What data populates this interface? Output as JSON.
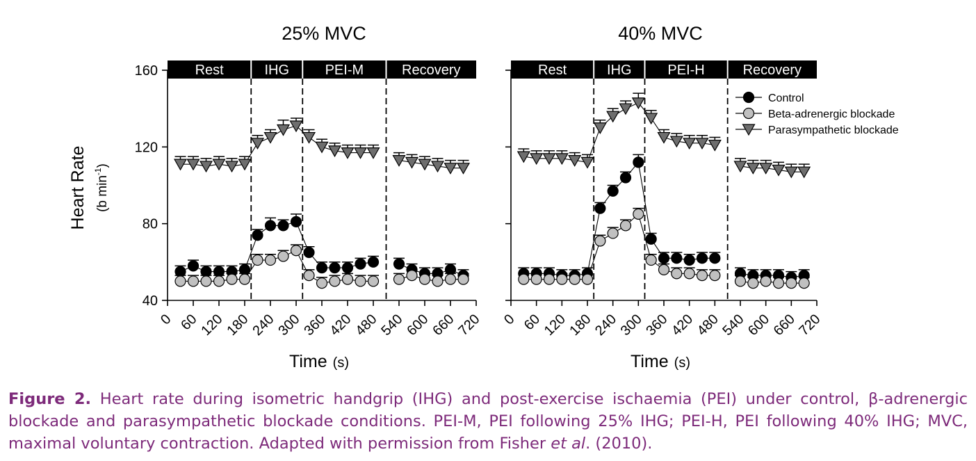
{
  "figure": {
    "ylabel_main": "Heart Rate",
    "ylabel_unit_prefix": "(b min",
    "ylabel_unit_sup": "-1",
    "ylabel_unit_suffix": ")",
    "xlabel_main": "Time",
    "xlabel_unit": "(s)",
    "legend": [
      "Control",
      "Beta-adrenergic blockade",
      "Parasympathetic blockade"
    ]
  },
  "caption": {
    "label": "Figure 2.",
    "text_1": " Heart rate during isometric handgrip (IHG) and post-exercise ischaemia (PEI) under control, β-adrenergic blockade and parasympathetic blockade conditions. PEI-M, PEI following 25% IHG; PEI-H, PEI following 40% IHG; MVC, maximal voluntary contraction. Adapted with permission from Fisher ",
    "italic": "et al",
    "text_2": ". (2010)."
  },
  "colors": {
    "control": "#000000",
    "beta": "#c0c0c0",
    "para": "#6e6e6e",
    "caption": "#7d2a7a"
  },
  "chart_data": [
    {
      "type": "line",
      "title": "25% MVC",
      "xlabel": "Time (s)",
      "ylabel": "Heart Rate (b min-1)",
      "xlim": [
        0,
        720
      ],
      "ylim": [
        40,
        160
      ],
      "xticks": [
        0,
        60,
        120,
        180,
        240,
        300,
        360,
        420,
        480,
        540,
        600,
        660,
        720
      ],
      "yticks": [
        40,
        80,
        120,
        160
      ],
      "phases": [
        {
          "label": "Rest",
          "start": 0,
          "end": 195
        },
        {
          "label": "IHG",
          "start": 195,
          "end": 315
        },
        {
          "label": "PEI-M",
          "start": 315,
          "end": 510
        },
        {
          "label": "Recovery",
          "start": 510,
          "end": 720
        }
      ],
      "phase_boundaries": [
        195,
        315,
        510
      ],
      "series": [
        {
          "name": "Control",
          "key": "control",
          "marker": "circle",
          "x": [
            30,
            60,
            90,
            120,
            150,
            180,
            210,
            240,
            270,
            300,
            330,
            360,
            390,
            420,
            450,
            480,
            540,
            570,
            600,
            630,
            660,
            690
          ],
          "y": [
            55,
            58,
            55,
            55,
            55,
            56,
            74,
            79,
            79,
            81,
            65,
            57,
            57,
            57,
            59,
            60,
            59,
            56,
            54,
            54,
            56,
            53
          ],
          "err": [
            3,
            3,
            3,
            3,
            3,
            3,
            3,
            4,
            3,
            4,
            3,
            3,
            3,
            3,
            3,
            3,
            3,
            3,
            3,
            3,
            3,
            3
          ]
        },
        {
          "name": "Beta-adrenergic blockade",
          "key": "beta",
          "marker": "circle",
          "x": [
            30,
            60,
            90,
            120,
            150,
            180,
            210,
            240,
            270,
            300,
            330,
            360,
            390,
            420,
            450,
            480,
            540,
            570,
            600,
            630,
            660,
            690
          ],
          "y": [
            50,
            50,
            50,
            50,
            51,
            51,
            61,
            61,
            63,
            66,
            53,
            49,
            50,
            51,
            50,
            50,
            51,
            53,
            51,
            50,
            51,
            51
          ],
          "err": [
            3,
            3,
            3,
            3,
            3,
            3,
            3,
            3,
            3,
            3,
            3,
            3,
            3,
            3,
            3,
            3,
            3,
            3,
            3,
            3,
            3,
            3
          ]
        },
        {
          "name": "Parasympathetic blockade",
          "key": "para",
          "marker": "triangle-down",
          "x": [
            30,
            60,
            90,
            120,
            150,
            180,
            210,
            240,
            270,
            300,
            330,
            360,
            390,
            420,
            450,
            480,
            540,
            570,
            600,
            630,
            660,
            690
          ],
          "y": [
            111,
            111,
            110,
            111,
            110,
            111,
            122,
            125,
            129,
            131,
            125,
            120,
            118,
            117,
            117,
            117,
            113,
            112,
            111,
            110,
            109,
            109
          ],
          "err": [
            4,
            4,
            4,
            4,
            4,
            4,
            4,
            4,
            5,
            4,
            4,
            4,
            4,
            4,
            4,
            4,
            4,
            4,
            4,
            4,
            4,
            4
          ]
        }
      ]
    },
    {
      "type": "line",
      "title": "40% MVC",
      "xlabel": "Time (s)",
      "ylabel": "Heart Rate (b min-1)",
      "xlim": [
        0,
        720
      ],
      "ylim": [
        40,
        160
      ],
      "xticks": [
        0,
        60,
        120,
        180,
        240,
        300,
        360,
        420,
        480,
        540,
        600,
        660,
        720
      ],
      "yticks": [
        40,
        80,
        120,
        160
      ],
      "phases": [
        {
          "label": "Rest",
          "start": 0,
          "end": 195
        },
        {
          "label": "IHG",
          "start": 195,
          "end": 315
        },
        {
          "label": "PEI-H",
          "start": 315,
          "end": 510
        },
        {
          "label": "Recovery",
          "start": 510,
          "end": 720
        }
      ],
      "phase_boundaries": [
        195,
        315,
        510
      ],
      "legend_position": "top-right",
      "series": [
        {
          "name": "Control",
          "key": "control",
          "marker": "circle",
          "x": [
            30,
            60,
            90,
            120,
            150,
            180,
            210,
            240,
            270,
            300,
            330,
            360,
            390,
            420,
            450,
            480,
            540,
            570,
            600,
            630,
            660,
            690
          ],
          "y": [
            54,
            54,
            54,
            53,
            53,
            54,
            88,
            97,
            104,
            112,
            72,
            62,
            62,
            61,
            62,
            62,
            54,
            53,
            53,
            53,
            52,
            53
          ],
          "err": [
            3,
            3,
            3,
            3,
            3,
            3,
            3,
            3,
            3,
            4,
            3,
            3,
            3,
            3,
            3,
            3,
            3,
            3,
            3,
            3,
            3,
            3
          ]
        },
        {
          "name": "Beta-adrenergic blockade",
          "key": "beta",
          "marker": "circle",
          "x": [
            30,
            60,
            90,
            120,
            150,
            180,
            210,
            240,
            270,
            300,
            330,
            360,
            390,
            420,
            450,
            480,
            540,
            570,
            600,
            630,
            660,
            690
          ],
          "y": [
            51,
            51,
            51,
            51,
            51,
            51,
            71,
            75,
            79,
            85,
            61,
            56,
            54,
            54,
            53,
            53,
            50,
            49,
            50,
            49,
            49,
            49
          ],
          "err": [
            3,
            3,
            3,
            3,
            3,
            3,
            3,
            3,
            3,
            3,
            3,
            3,
            3,
            3,
            3,
            3,
            3,
            3,
            3,
            3,
            3,
            3
          ]
        },
        {
          "name": "Parasympathetic blockade",
          "key": "para",
          "marker": "triangle-down",
          "x": [
            30,
            60,
            90,
            120,
            150,
            180,
            210,
            240,
            270,
            300,
            330,
            360,
            390,
            420,
            450,
            480,
            540,
            570,
            600,
            630,
            660,
            690
          ],
          "y": [
            115,
            114,
            114,
            114,
            113,
            112,
            130,
            136,
            140,
            143,
            135,
            125,
            123,
            122,
            122,
            121,
            110,
            109,
            109,
            108,
            107,
            107
          ],
          "err": [
            4,
            4,
            4,
            4,
            4,
            4,
            4,
            4,
            4,
            5,
            4,
            4,
            4,
            4,
            4,
            4,
            4,
            4,
            4,
            4,
            4,
            4
          ]
        }
      ]
    }
  ]
}
